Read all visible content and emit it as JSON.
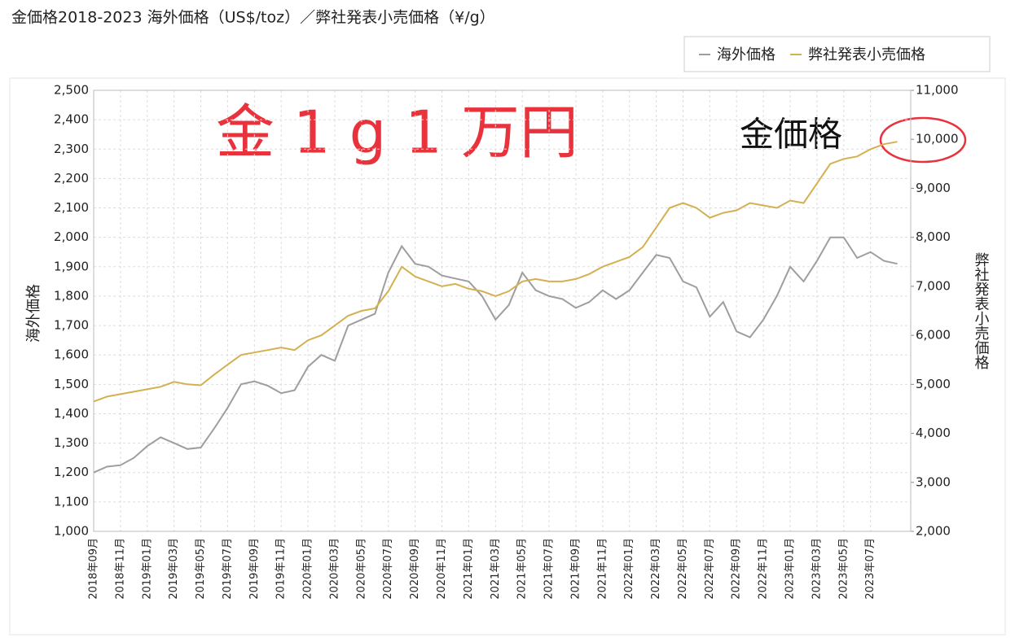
{
  "chart_data": {
    "type": "line",
    "title": "金価格2018-2023 海外価格（US$/toz）／弊社発表小売価格（¥/g）",
    "annotations": [
      "金 1 g 1 万円",
      "金価格"
    ],
    "y_label": "海外価格",
    "y2_label": "弊社発表小売価格",
    "legend": "top-right",
    "grid": true,
    "categories": [
      "2018年09月",
      null,
      "2018年11月",
      null,
      "2019年01月",
      null,
      "2019年03月",
      null,
      "2019年05月",
      null,
      "2019年07月",
      null,
      "2019年09月",
      null,
      "2019年11月",
      null,
      "2020年01月",
      null,
      "2020年03月",
      null,
      "2020年05月",
      null,
      "2020年07月",
      null,
      "2020年09月",
      null,
      "2020年11月",
      null,
      "2021年01月",
      null,
      "2021年03月",
      null,
      "2021年05月",
      null,
      "2021年07月",
      null,
      "2021年09月",
      null,
      "2021年11月",
      null,
      "2022年01月",
      null,
      "2022年03月",
      null,
      "2022年05月",
      null,
      "2022年07月",
      null,
      "2022年09月",
      null,
      "2022年11月",
      null,
      "2023年01月",
      null,
      "2023年03月",
      null,
      "2023年05月",
      null,
      "2023年07月",
      null,
      null
    ],
    "series": [
      {
        "name": "海外価格",
        "color": "#9e9e9e",
        "axis": "y",
        "values": [
          1200,
          1220,
          1225,
          1250,
          1290,
          1320,
          1300,
          1280,
          1285,
          1350,
          1420,
          1500,
          1510,
          1495,
          1470,
          1480,
          1560,
          1600,
          1580,
          1700,
          1720,
          1740,
          1880,
          1970,
          1910,
          1900,
          1870,
          1860,
          1850,
          1800,
          1720,
          1770,
          1880,
          1820,
          1800,
          1790,
          1760,
          1780,
          1820,
          1790,
          1820,
          1880,
          1940,
          1930,
          1850,
          1830,
          1730,
          1780,
          1680,
          1660,
          1720,
          1800,
          1900,
          1850,
          1920,
          2000,
          2000,
          1930,
          1950,
          1920,
          1910
        ]
      },
      {
        "name": "弊社発表小売価格",
        "color": "#d4b050",
        "axis": "y2",
        "values": [
          4650,
          4750,
          4800,
          4850,
          4900,
          4950,
          5050,
          5000,
          4980,
          5200,
          5400,
          5600,
          5650,
          5700,
          5750,
          5700,
          5900,
          6000,
          6200,
          6400,
          6500,
          6550,
          6900,
          7400,
          7200,
          7100,
          7000,
          7050,
          6950,
          6900,
          6800,
          6900,
          7100,
          7150,
          7100,
          7100,
          7150,
          7250,
          7400,
          7500,
          7600,
          7800,
          8200,
          8600,
          8700,
          8600,
          8400,
          8500,
          8550,
          8700,
          8650,
          8600,
          8750,
          8700,
          9100,
          9500,
          9600,
          9650,
          9800,
          9900,
          9950
        ]
      }
    ],
    "ylim": [
      1000,
      2500
    ],
    "yticks": [
      {
        "value": 1000,
        "label": "1,000"
      },
      {
        "value": 1100,
        "label": "1,100"
      },
      {
        "value": 1200,
        "label": "1,200"
      },
      {
        "value": 1300,
        "label": "1,300"
      },
      {
        "value": 1400,
        "label": "1,400"
      },
      {
        "value": 1500,
        "label": "1,500"
      },
      {
        "value": 1600,
        "label": "1,600"
      },
      {
        "value": 1700,
        "label": "1,700"
      },
      {
        "value": 1800,
        "label": "1,800"
      },
      {
        "value": 1900,
        "label": "1,900"
      },
      {
        "value": 2000,
        "label": "2,000"
      },
      {
        "value": 2100,
        "label": "2,100"
      },
      {
        "value": 2200,
        "label": "2,200"
      },
      {
        "value": 2300,
        "label": "2,300"
      },
      {
        "value": 2400,
        "label": "2,400"
      },
      {
        "value": 2500,
        "label": "2,500"
      }
    ],
    "y2lim": [
      2000,
      11000
    ],
    "y2ticks": [
      {
        "value": 2000,
        "label": "2,000"
      },
      {
        "value": 3000,
        "label": "3,000"
      },
      {
        "value": 4000,
        "label": "4,000"
      },
      {
        "value": 5000,
        "label": "5,000"
      },
      {
        "value": 6000,
        "label": "6,000"
      },
      {
        "value": 7000,
        "label": "7,000"
      },
      {
        "value": 8000,
        "label": "8,000"
      },
      {
        "value": 9000,
        "label": "9,000"
      },
      {
        "value": 10000,
        "label": "10,000"
      },
      {
        "value": 11000,
        "label": "11,000"
      }
    ]
  }
}
